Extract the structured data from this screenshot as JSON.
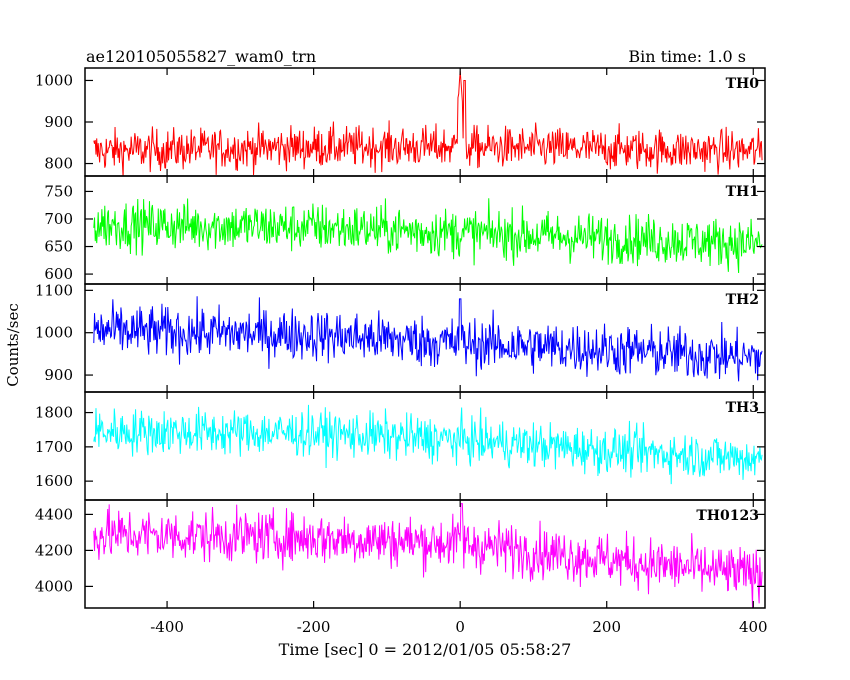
{
  "header": {
    "title": "ae120105055827_wam0_trn",
    "bin_time": "Bin time: 1.0 s"
  },
  "chart_data": {
    "type": "line",
    "title": "ae120105055827_wam0_trn",
    "subtitle": "Bin time: 1.0 s",
    "xlabel": "Time [sec] 0 = 2012/01/05 05:58:27",
    "ylabel": "Counts/sec",
    "xlim": [
      -512,
      416
    ],
    "x_range_data": [
      -500,
      412
    ],
    "xticks": [
      -400,
      -200,
      0,
      200,
      400
    ],
    "grid": false,
    "legend": "none",
    "panels": [
      {
        "name": "TH0",
        "color": "#ff0000",
        "ylim": [
          770,
          1030
        ],
        "yticks": [
          800,
          900,
          1000
        ],
        "baseline": [
          [
            -500,
            830
          ],
          [
            -200,
            840
          ],
          [
            0,
            840
          ],
          [
            200,
            835
          ],
          [
            412,
            830
          ]
        ],
        "noise_amplitude": 45,
        "features": [
          {
            "x": 0,
            "peak": 1030,
            "type": "spike"
          },
          {
            "x": 6,
            "value": 1000,
            "type": "spike"
          }
        ]
      },
      {
        "name": "TH1",
        "color": "#00ff00",
        "ylim": [
          582,
          778
        ],
        "yticks": [
          600,
          650,
          700,
          750
        ],
        "baseline": [
          [
            -500,
            690
          ],
          [
            -200,
            685
          ],
          [
            0,
            675
          ],
          [
            200,
            665
          ],
          [
            412,
            655
          ]
        ],
        "noise_amplitude": 40,
        "features": []
      },
      {
        "name": "TH2",
        "color": "#0000ff",
        "ylim": [
          860,
          1115
        ],
        "yticks": [
          900,
          1000,
          1100
        ],
        "baseline": [
          [
            -500,
            1005
          ],
          [
            -200,
            995
          ],
          [
            0,
            975
          ],
          [
            200,
            960
          ],
          [
            412,
            940
          ]
        ],
        "noise_amplitude": 55,
        "features": [
          {
            "x": 0,
            "value": 1080,
            "type": "spike"
          }
        ]
      },
      {
        "name": "TH3",
        "color": "#00ffff",
        "ylim": [
          1545,
          1860
        ],
        "yticks": [
          1600,
          1700,
          1800
        ],
        "baseline": [
          [
            -500,
            1745
          ],
          [
            -200,
            1740
          ],
          [
            0,
            1720
          ],
          [
            200,
            1690
          ],
          [
            412,
            1665
          ]
        ],
        "noise_amplitude": 60,
        "features": []
      },
      {
        "name": "TH0123",
        "color": "#ff00ff",
        "ylim": [
          3880,
          4480
        ],
        "yticks": [
          4000,
          4200,
          4400
        ],
        "baseline": [
          [
            -500,
            4290
          ],
          [
            -200,
            4270
          ],
          [
            0,
            4240
          ],
          [
            200,
            4150
          ],
          [
            412,
            4060
          ]
        ],
        "noise_amplitude": 130,
        "features": [
          {
            "x": 2,
            "value": 4460,
            "type": "spike"
          }
        ]
      }
    ]
  }
}
